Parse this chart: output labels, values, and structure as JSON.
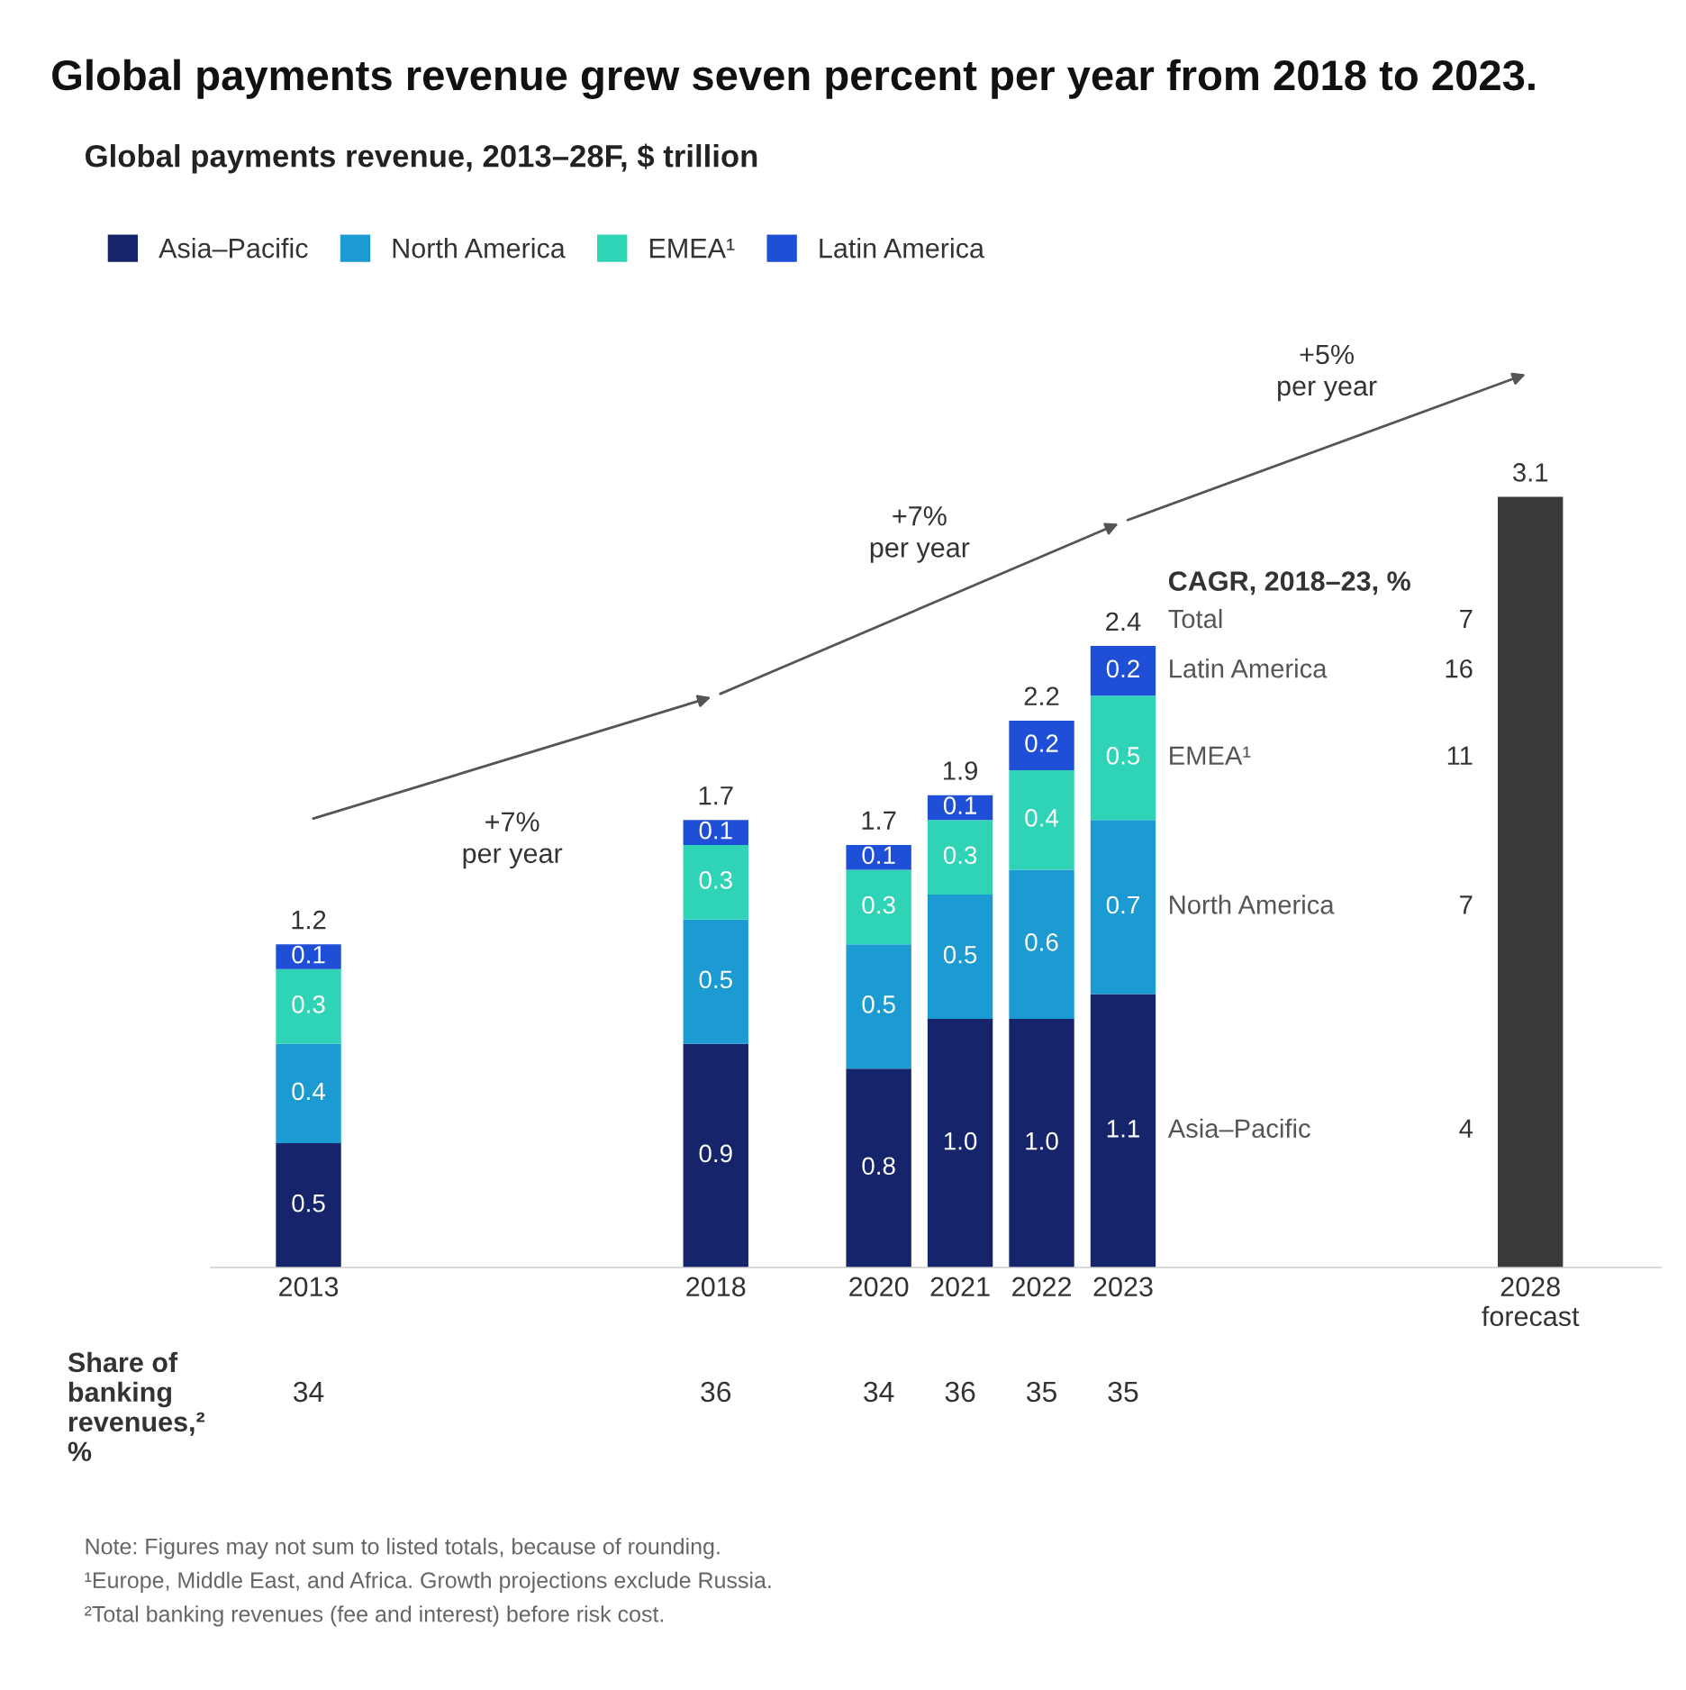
{
  "chart_data": {
    "type": "bar",
    "title": "Global payments revenue grew seven percent per year from 2018 to 2023.",
    "subtitle": "Global payments revenue, 2013–28F, $ trillion",
    "x": [
      2013,
      2018,
      2020,
      2021,
      2022,
      2023,
      2028
    ],
    "xlim": [
      2011.8,
      2029.6
    ],
    "xticks": [
      2013,
      2018,
      2020,
      2021,
      2022,
      2023,
      {
        "value": 2028,
        "label": "2028\nforecast"
      }
    ],
    "tick_labels": "x",
    "stacked": true,
    "legend": "top left",
    "series": [
      {
        "name": "Asia–Pacific",
        "color": "#15246b",
        "values": [
          0.5,
          0.9,
          0.8,
          1.0,
          1.0,
          1.1,
          null
        ],
        "value_labels": [
          "0.5",
          "0.9",
          "0.8",
          "1.0",
          "1.0",
          "1.1",
          null
        ]
      },
      {
        "name": "North America",
        "color": "#1c9bd3",
        "values": [
          0.4,
          0.5,
          0.5,
          0.5,
          0.6,
          0.7,
          null
        ],
        "value_labels": [
          "0.4",
          "0.5",
          "0.5",
          "0.5",
          "0.6",
          "0.7",
          null
        ]
      },
      {
        "name": "EMEA¹",
        "color": "#2fd4b6",
        "values": [
          0.3,
          0.3,
          0.3,
          0.3,
          0.4,
          0.5,
          null
        ],
        "value_labels": [
          "0.3",
          "0.3",
          "0.3",
          "0.3",
          "0.4",
          "0.5",
          null
        ]
      },
      {
        "name": "Latin America",
        "color": "#1f4fd6",
        "values": [
          0.1,
          0.1,
          0.1,
          0.1,
          0.2,
          0.2,
          null
        ],
        "value_labels": [
          "0.1",
          "0.1",
          "0.1",
          "0.1",
          "0.2",
          "0.2",
          null
        ]
      },
      {
        "color": "#3a3a3a",
        "values": [
          null,
          null,
          null,
          null,
          null,
          null,
          3.1
        ]
      }
    ],
    "totals": [
      "1.2",
      "1.7",
      "1.7",
      "1.9",
      "2.2",
      "2.4",
      "3.1"
    ],
    "annotations": [
      "+7%\nper year",
      "+7%\nper year",
      "+5%\nper year",
      "CAGR, 2018–23, %",
      "Total",
      "7",
      "Latin America",
      "16",
      "EMEA¹",
      "11",
      "North America",
      "7",
      "Asia–Pacific",
      "4",
      "Share of\nbanking\nrevenues,²\n%",
      "34",
      "36",
      "34",
      "36",
      "35",
      "35",
      "Note: Figures may not sum to listed totals, because of rounding.",
      "¹Europe, Middle East, and Africa. Growth projections exclude Russia.",
      "²Total banking revenues (fee and interest) before risk cost."
    ]
  }
}
